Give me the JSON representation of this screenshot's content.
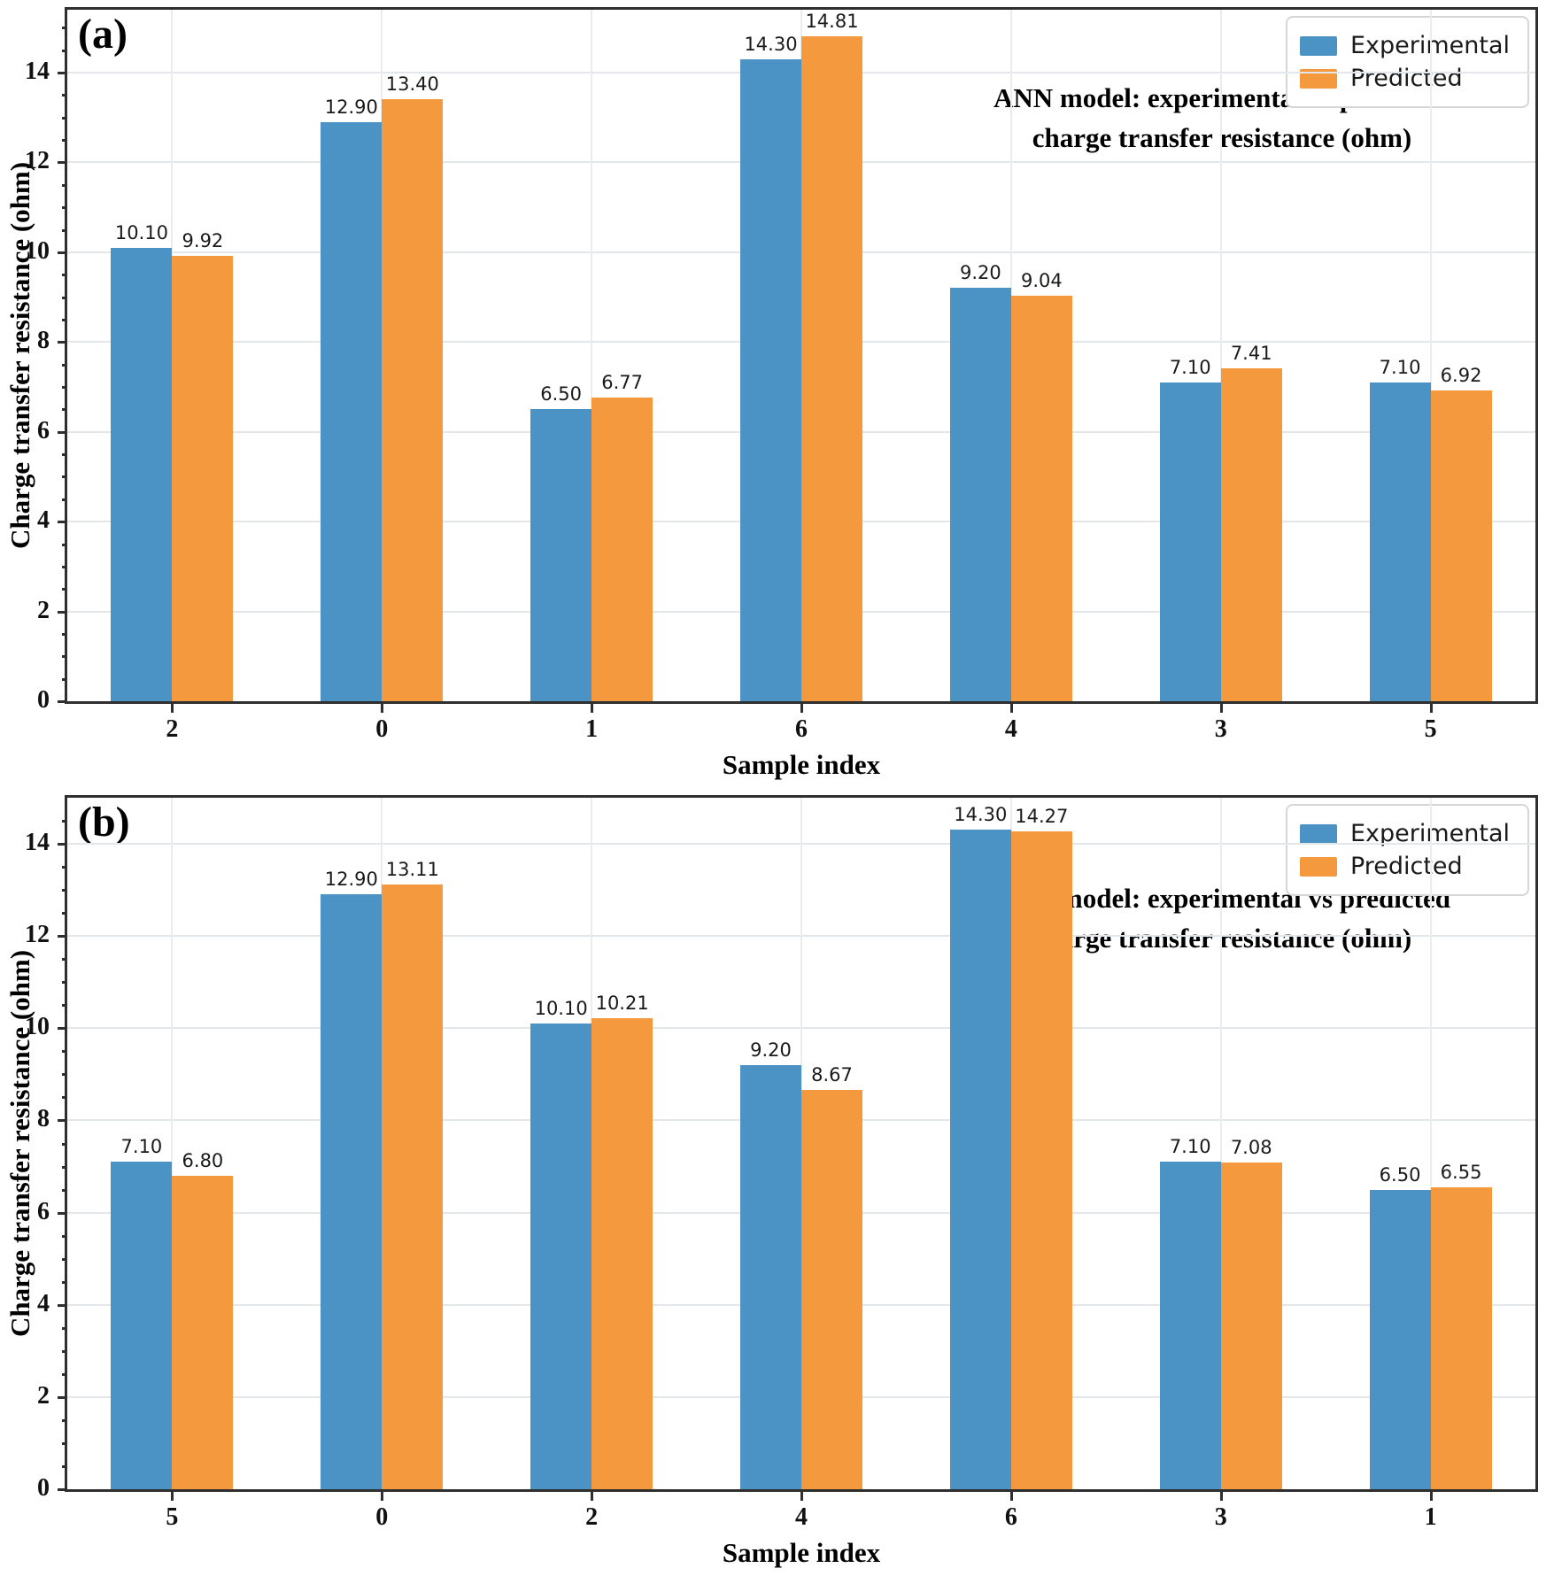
{
  "colors": {
    "experimental": "#4b92c5",
    "predicted": "#f4993e",
    "grid": "#e4e7ea",
    "spine": "#2f2f2f"
  },
  "figure": {
    "legend": [
      "Experimental",
      "Predicted"
    ],
    "ylabel": "Charge transfer resistance (ohm)",
    "xlabel": "Sample index"
  },
  "chart_data": [
    {
      "type": "bar",
      "panel": "(a)",
      "title_line1": "ANN model: experimental vs predicted",
      "title_line2": "charge transfer resistance (ohm)",
      "categories": [
        "2",
        "0",
        "1",
        "6",
        "4",
        "3",
        "5"
      ],
      "series": [
        {
          "name": "Experimental",
          "values": [
            10.1,
            12.9,
            6.5,
            14.3,
            9.2,
            7.1,
            7.1
          ]
        },
        {
          "name": "Predicted",
          "values": [
            9.92,
            13.4,
            6.77,
            14.81,
            9.04,
            7.41,
            6.92
          ]
        }
      ],
      "xlabel": "Sample index",
      "ylabel": "Charge transfer resistance (ohm)",
      "ylim": [
        0,
        15.4
      ],
      "yticks": [
        0,
        2,
        4,
        6,
        8,
        10,
        12,
        14
      ],
      "grid": true,
      "legend_position": "upper right"
    },
    {
      "type": "bar",
      "panel": "(b)",
      "title_line1": "MLP model: experimental vs predicted",
      "title_line2": "charge transfer resistance (ohm)",
      "categories": [
        "5",
        "0",
        "2",
        "4",
        "6",
        "3",
        "1"
      ],
      "series": [
        {
          "name": "Experimental",
          "values": [
            7.1,
            12.9,
            10.1,
            9.2,
            14.3,
            7.1,
            6.5
          ]
        },
        {
          "name": "Predicted",
          "values": [
            6.8,
            13.11,
            10.21,
            8.67,
            14.27,
            7.08,
            6.55
          ]
        }
      ],
      "xlabel": "Sample index",
      "ylabel": "Charge transfer resistance (ohm)",
      "ylim": [
        0,
        15.0
      ],
      "yticks": [
        0,
        2,
        4,
        6,
        8,
        10,
        12,
        14
      ],
      "grid": true,
      "legend_position": "upper right"
    }
  ]
}
